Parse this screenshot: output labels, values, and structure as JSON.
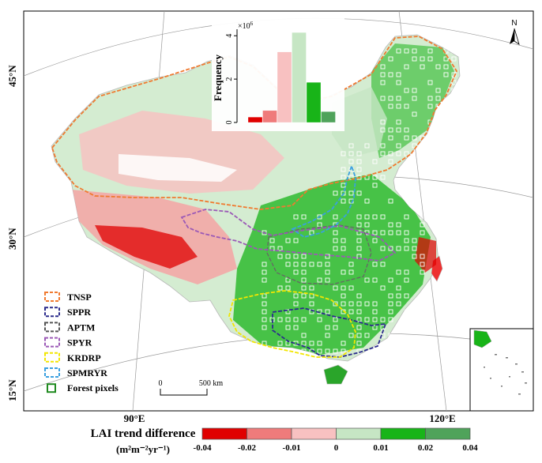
{
  "map": {
    "lat_labels": [
      "45°N",
      "30°N",
      "15°N"
    ],
    "lon_labels": [
      "90°E",
      "120°E"
    ],
    "north_label": "N",
    "scale": {
      "start": "0",
      "end": "500 km"
    }
  },
  "legend": {
    "regions": [
      {
        "label": "TNSP",
        "color": "#f07a30",
        "dash": true
      },
      {
        "label": "SPPR",
        "color": "#2b2b8c",
        "dash": true
      },
      {
        "label": "APTM",
        "color": "#555555",
        "dash": true
      },
      {
        "label": "SPYR",
        "color": "#9b59b6",
        "dash": true
      },
      {
        "label": "KRDRP",
        "color": "#f2e600",
        "dash": true
      },
      {
        "label": "SPMRYR",
        "color": "#3aa0e0",
        "dash": true
      }
    ],
    "forest_label": "Forest pixels",
    "forest_color": "#1f8a1f"
  },
  "colorbar": {
    "title": "LAI trend difference",
    "units": "(m²m⁻²yr⁻¹)",
    "ticks": [
      "-0.04",
      "-0.02",
      "-0.01",
      "0",
      "0.01",
      "0.02",
      "0.04"
    ],
    "colors": [
      "#e00000",
      "#ef7b7b",
      "#f8c1c1",
      "#c6e6c4",
      "#18b418",
      "#4fa35a"
    ]
  },
  "chart_data": {
    "type": "bar",
    "ylabel": "Frequency",
    "multiplier_label": "×10",
    "multiplier_exp": "6",
    "y_ticks": [
      "0",
      "2",
      "4"
    ],
    "ylim": [
      0,
      4.3
    ],
    "values": [
      0.25,
      0.55,
      3.25,
      4.15,
      1.85,
      0.5
    ],
    "colors": [
      "#e00000",
      "#ef7b7b",
      "#f8c1c1",
      "#c6e6c4",
      "#18b418",
      "#4fa35a"
    ]
  }
}
